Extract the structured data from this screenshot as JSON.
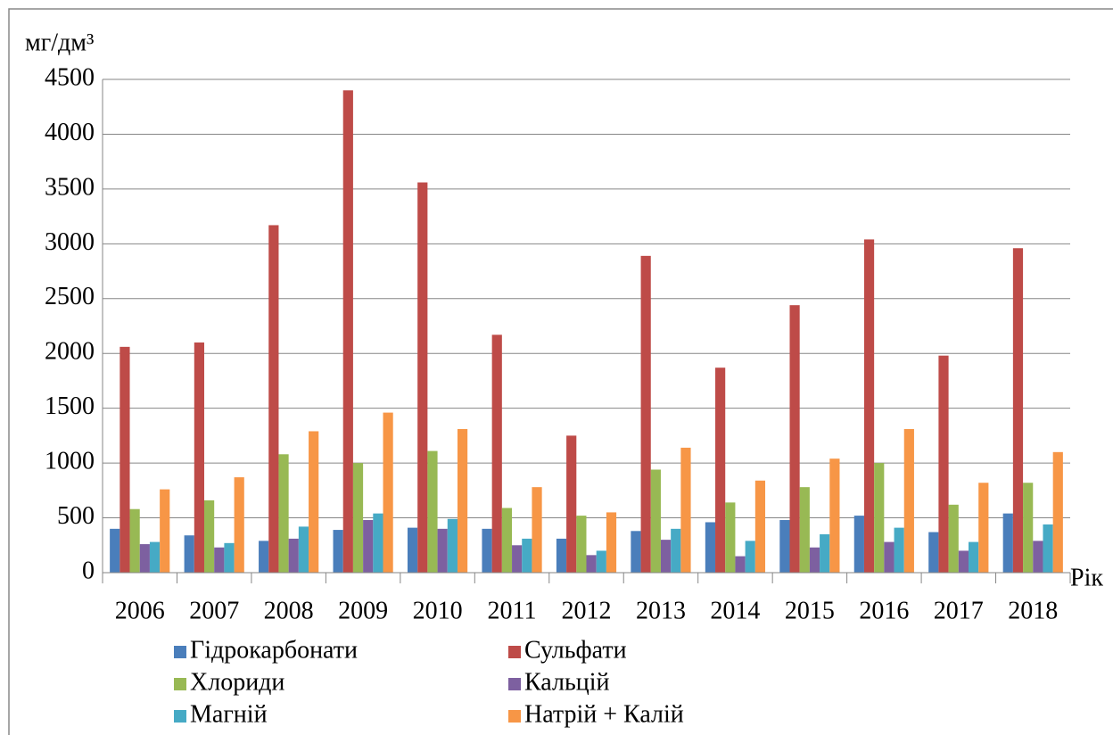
{
  "chart_data": {
    "type": "bar",
    "y_label": "мг/дм³",
    "x_label": "Рік",
    "categories": [
      "2006",
      "2007",
      "2008",
      "2009",
      "2010",
      "2011",
      "2012",
      "2013",
      "2014",
      "2015",
      "2016",
      "2017",
      "2018"
    ],
    "series": [
      {
        "name": "Гідрокарбонати",
        "color": "#4a7ebb",
        "values": [
          400,
          340,
          290,
          390,
          410,
          400,
          310,
          380,
          460,
          480,
          520,
          370,
          540
        ]
      },
      {
        "name": "Сульфати",
        "color": "#be4b48",
        "values": [
          2060,
          2100,
          3170,
          4400,
          3560,
          2170,
          1250,
          2890,
          1870,
          2440,
          3040,
          1980,
          2960
        ]
      },
      {
        "name": "Хлориди",
        "color": "#98b954",
        "values": [
          580,
          660,
          1080,
          1000,
          1110,
          590,
          520,
          940,
          640,
          780,
          1000,
          620,
          820
        ]
      },
      {
        "name": "Кальцій",
        "color": "#7d60a0",
        "values": [
          260,
          230,
          310,
          480,
          400,
          250,
          160,
          300,
          150,
          230,
          280,
          200,
          290
        ]
      },
      {
        "name": "Магній",
        "color": "#46aac5",
        "values": [
          280,
          270,
          420,
          540,
          490,
          310,
          200,
          400,
          290,
          350,
          410,
          280,
          440
        ]
      },
      {
        "name": "Натрій + Калій",
        "color": "#f79646",
        "values": [
          760,
          870,
          1290,
          1460,
          1310,
          780,
          550,
          1140,
          840,
          1040,
          1310,
          820,
          1100
        ]
      }
    ],
    "ylim": [
      0,
      4500
    ],
    "yticks": [
      0,
      500,
      1000,
      1500,
      2000,
      2500,
      3000,
      3500,
      4000,
      4500
    ],
    "grid": true
  }
}
